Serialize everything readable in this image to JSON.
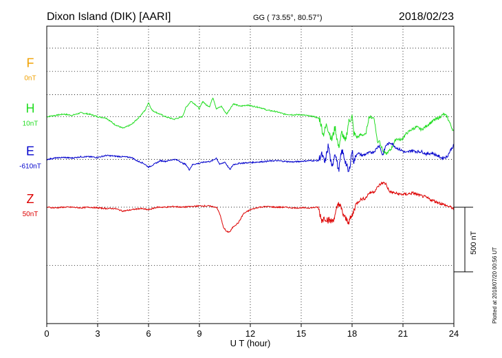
{
  "header": {
    "station": "Dixon Island (DIK)  [AARI]",
    "coords": "GG ( 73.55°,  80.57°)",
    "date": "2018/02/23"
  },
  "footer": {
    "plotted": "Plotted at 2018/07/20 00:56 UT"
  },
  "colors": {
    "F": "#f0a000",
    "H": "#22dd22",
    "E": "#0000cc",
    "Z": "#dd0000"
  },
  "chart_data": {
    "type": "line",
    "xlabel": "U T (hour)",
    "xlim": [
      0,
      24
    ],
    "xticks": [
      "0",
      "3",
      "6",
      "9",
      "12",
      "15",
      "18",
      "21",
      "24"
    ],
    "ylim_nT": [
      -900,
      1400
    ],
    "scale_bar_label": "500 nT",
    "scale_bar_nT": 500,
    "grid": true,
    "series": [
      {
        "name": "F",
        "offset_label": "0nT",
        "baseline_nT": 1050,
        "points": []
      },
      {
        "name": "H",
        "offset_label": "10nT",
        "baseline_nT": 700,
        "points": [
          [
            0,
            700
          ],
          [
            0.5,
            710
          ],
          [
            1,
            720
          ],
          [
            1.5,
            710
          ],
          [
            2,
            730
          ],
          [
            2.5,
            720
          ],
          [
            3,
            700
          ],
          [
            3.5,
            690
          ],
          [
            4,
            640
          ],
          [
            4.5,
            610
          ],
          [
            5,
            640
          ],
          [
            5.4,
            690
          ],
          [
            5.8,
            750
          ],
          [
            6,
            810
          ],
          [
            6.2,
            750
          ],
          [
            6.5,
            730
          ],
          [
            7,
            700
          ],
          [
            7.5,
            680
          ],
          [
            8,
            700
          ],
          [
            8.2,
            770
          ],
          [
            8.5,
            820
          ],
          [
            8.8,
            790
          ],
          [
            9,
            760
          ],
          [
            9.2,
            820
          ],
          [
            9.4,
            790
          ],
          [
            9.6,
            780
          ],
          [
            9.8,
            850
          ],
          [
            10,
            760
          ],
          [
            10.3,
            780
          ],
          [
            10.6,
            720
          ],
          [
            11,
            800
          ],
          [
            11.4,
            780
          ],
          [
            11.8,
            790
          ],
          [
            12.2,
            780
          ],
          [
            12.6,
            770
          ],
          [
            13,
            750
          ],
          [
            13.5,
            740
          ],
          [
            14,
            720
          ],
          [
            14.5,
            715
          ],
          [
            15,
            715
          ],
          [
            15.5,
            705
          ],
          [
            15.8,
            700
          ],
          [
            16.1,
            680
          ],
          [
            16.3,
            560
          ],
          [
            16.5,
            640
          ],
          [
            16.8,
            520
          ],
          [
            17,
            620
          ],
          [
            17.2,
            460
          ],
          [
            17.4,
            580
          ],
          [
            17.6,
            500
          ],
          [
            17.8,
            660
          ],
          [
            18,
            700
          ],
          [
            18.1,
            570
          ],
          [
            18.3,
            540
          ],
          [
            18.5,
            560
          ],
          [
            18.8,
            560
          ],
          [
            19,
            700
          ],
          [
            19.3,
            690
          ],
          [
            19.5,
            500
          ],
          [
            19.6,
            520
          ],
          [
            19.8,
            440
          ],
          [
            20,
            410
          ],
          [
            20.3,
            450
          ],
          [
            20.6,
            530
          ],
          [
            20.9,
            520
          ],
          [
            21.2,
            570
          ],
          [
            21.5,
            600
          ],
          [
            21.8,
            620
          ],
          [
            22.1,
            600
          ],
          [
            22.5,
            640
          ],
          [
            22.8,
            670
          ],
          [
            23.1,
            690
          ],
          [
            23.4,
            720
          ],
          [
            23.6,
            700
          ],
          [
            23.8,
            640
          ],
          [
            24,
            580
          ]
        ]
      },
      {
        "name": "E",
        "offset_label": "-610nT",
        "baseline_nT": 370,
        "points": [
          [
            0,
            370
          ],
          [
            0.5,
            380
          ],
          [
            1,
            385
          ],
          [
            1.5,
            380
          ],
          [
            2,
            390
          ],
          [
            2.5,
            390
          ],
          [
            3,
            385
          ],
          [
            3.5,
            400
          ],
          [
            4,
            395
          ],
          [
            4.5,
            390
          ],
          [
            5,
            385
          ],
          [
            5.3,
            360
          ],
          [
            5.7,
            340
          ],
          [
            6,
            310
          ],
          [
            6.3,
            330
          ],
          [
            6.7,
            360
          ],
          [
            7,
            355
          ],
          [
            7.5,
            370
          ],
          [
            7.8,
            360
          ],
          [
            8,
            340
          ],
          [
            8.2,
            330
          ],
          [
            8.4,
            290
          ],
          [
            8.6,
            330
          ],
          [
            9,
            340
          ],
          [
            9.3,
            350
          ],
          [
            9.7,
            355
          ],
          [
            10,
            380
          ],
          [
            10.2,
            330
          ],
          [
            10.5,
            350
          ],
          [
            10.8,
            290
          ],
          [
            11,
            330
          ],
          [
            11.4,
            340
          ],
          [
            12,
            345
          ],
          [
            12.5,
            350
          ],
          [
            13,
            355
          ],
          [
            13.5,
            360
          ],
          [
            14,
            355
          ],
          [
            14.5,
            350
          ],
          [
            15,
            355
          ],
          [
            15.5,
            360
          ],
          [
            16,
            360
          ],
          [
            16.2,
            410
          ],
          [
            16.4,
            340
          ],
          [
            16.6,
            480
          ],
          [
            16.8,
            300
          ],
          [
            17,
            430
          ],
          [
            17.2,
            280
          ],
          [
            17.4,
            440
          ],
          [
            17.6,
            360
          ],
          [
            17.8,
            260
          ],
          [
            18,
            440
          ],
          [
            18.1,
            350
          ],
          [
            18.3,
            420
          ],
          [
            18.6,
            400
          ],
          [
            19,
            420
          ],
          [
            19.3,
            430
          ],
          [
            19.6,
            480
          ],
          [
            19.8,
            400
          ],
          [
            20,
            480
          ],
          [
            20.3,
            500
          ],
          [
            20.6,
            460
          ],
          [
            20.9,
            440
          ],
          [
            21.2,
            420
          ],
          [
            21.5,
            440
          ],
          [
            21.8,
            430
          ],
          [
            22.1,
            430
          ],
          [
            22.4,
            410
          ],
          [
            22.7,
            420
          ],
          [
            23,
            400
          ],
          [
            23.3,
            380
          ],
          [
            23.6,
            390
          ],
          [
            23.8,
            440
          ],
          [
            24,
            480
          ]
        ]
      },
      {
        "name": "Z",
        "offset_label": "50nT",
        "baseline_nT": 0,
        "points": [
          [
            0,
            0
          ],
          [
            0.5,
            -5
          ],
          [
            1,
            0
          ],
          [
            1.5,
            0
          ],
          [
            2,
            -5
          ],
          [
            2.5,
            0
          ],
          [
            3,
            -5
          ],
          [
            3.5,
            -10
          ],
          [
            4,
            -10
          ],
          [
            4.5,
            -30
          ],
          [
            5,
            -20
          ],
          [
            5.5,
            -10
          ],
          [
            6,
            -20
          ],
          [
            6.5,
            0
          ],
          [
            7,
            0
          ],
          [
            7.5,
            5
          ],
          [
            8,
            0
          ],
          [
            8.5,
            5
          ],
          [
            9,
            10
          ],
          [
            9.5,
            10
          ],
          [
            10,
            0
          ],
          [
            10.2,
            -50
          ],
          [
            10.4,
            -150
          ],
          [
            10.6,
            -190
          ],
          [
            10.8,
            -190
          ],
          [
            11,
            -150
          ],
          [
            11.3,
            -120
          ],
          [
            11.6,
            -50
          ],
          [
            12,
            -20
          ],
          [
            12.5,
            0
          ],
          [
            13,
            5
          ],
          [
            13.5,
            0
          ],
          [
            14,
            0
          ],
          [
            14.5,
            -5
          ],
          [
            15,
            -5
          ],
          [
            15.5,
            -5
          ],
          [
            16,
            0
          ],
          [
            16.2,
            -100
          ],
          [
            16.4,
            -80
          ],
          [
            16.6,
            -100
          ],
          [
            16.8,
            -110
          ],
          [
            17,
            -70
          ],
          [
            17.2,
            40
          ],
          [
            17.4,
            -30
          ],
          [
            17.6,
            -90
          ],
          [
            17.8,
            -110
          ],
          [
            18,
            -70
          ],
          [
            18.2,
            20
          ],
          [
            18.5,
            60
          ],
          [
            18.8,
            70
          ],
          [
            19,
            110
          ],
          [
            19.3,
            120
          ],
          [
            19.6,
            170
          ],
          [
            19.8,
            190
          ],
          [
            20,
            180
          ],
          [
            20.2,
            120
          ],
          [
            20.5,
            110
          ],
          [
            20.8,
            100
          ],
          [
            21.2,
            100
          ],
          [
            21.6,
            110
          ],
          [
            22,
            90
          ],
          [
            22.3,
            80
          ],
          [
            22.6,
            60
          ],
          [
            23,
            40
          ],
          [
            23.4,
            20
          ],
          [
            23.8,
            0
          ],
          [
            24,
            -10
          ]
        ]
      }
    ]
  }
}
